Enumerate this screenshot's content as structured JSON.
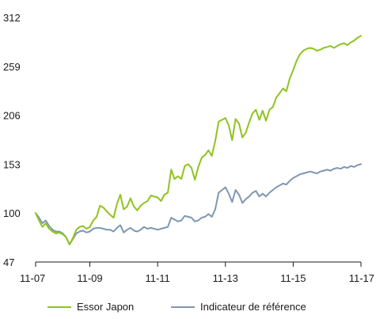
{
  "chart_data": {
    "type": "line",
    "title": "",
    "xlabel": "",
    "ylabel": "",
    "ylim": [
      47,
      312
    ],
    "yticks": [
      47,
      100,
      153,
      206,
      259,
      312
    ],
    "xlim": [
      0,
      48
    ],
    "xticks": [
      {
        "x": 0,
        "label": "11-07"
      },
      {
        "x": 8,
        "label": "11-09"
      },
      {
        "x": 18,
        "label": "11-11"
      },
      {
        "x": 28,
        "label": "11-13"
      },
      {
        "x": 38,
        "label": "11-15"
      },
      {
        "x": 48,
        "label": "11-17"
      }
    ],
    "grid": false,
    "legend_position": "bottom",
    "series": [
      {
        "name": "Essor Japon",
        "color": "#8fc31f",
        "x": [
          0,
          0.5,
          1,
          1.5,
          2,
          2.5,
          3,
          3.5,
          4,
          4.5,
          5,
          5.5,
          6,
          6.5,
          7,
          7.5,
          8,
          8.5,
          9,
          9.5,
          10,
          10.5,
          11,
          11.5,
          12,
          12.5,
          13,
          13.5,
          14,
          14.5,
          15,
          15.5,
          16,
          16.5,
          17,
          17.5,
          18,
          18.5,
          19,
          19.5,
          20,
          20.5,
          21,
          21.5,
          22,
          22.5,
          23,
          23.5,
          24,
          24.5,
          25,
          25.5,
          26,
          26.5,
          27,
          27.5,
          28,
          28.5,
          29,
          29.5,
          30,
          30.5,
          31,
          31.5,
          32,
          32.5,
          33,
          33.5,
          34,
          34.5,
          35,
          35.5,
          36,
          36.5,
          37,
          37.5,
          38,
          38.5,
          39,
          39.5,
          40,
          40.5,
          41,
          41.5,
          42,
          42.5,
          43,
          43.5,
          44,
          44.5,
          45,
          45.5,
          46,
          46.5,
          47,
          47.5,
          48
        ],
        "values": [
          100,
          92,
          85,
          89,
          83,
          80,
          78,
          79,
          77,
          74,
          66,
          73,
          82,
          85,
          86,
          83,
          85,
          92,
          96,
          108,
          106,
          102,
          98,
          95,
          110,
          120,
          104,
          107,
          116,
          107,
          103,
          108,
          111,
          113,
          119,
          118,
          117,
          113,
          120,
          122,
          147,
          137,
          140,
          137,
          151,
          153,
          149,
          136,
          150,
          160,
          163,
          168,
          162,
          178,
          199,
          201,
          203,
          195,
          179,
          202,
          197,
          182,
          187,
          198,
          208,
          212,
          201,
          211,
          200,
          212,
          215,
          225,
          230,
          235,
          232,
          246,
          255,
          265,
          272,
          276,
          278,
          279,
          278,
          276,
          277,
          279,
          280,
          281,
          279,
          281,
          283,
          284,
          282,
          285,
          287,
          290,
          292
        ]
      },
      {
        "name": "Indicateur de référence",
        "color": "#7f97b2",
        "x": [
          0,
          0.5,
          1,
          1.5,
          2,
          2.5,
          3,
          3.5,
          4,
          4.5,
          5,
          5.5,
          6,
          6.5,
          7,
          7.5,
          8,
          8.5,
          9,
          9.5,
          10,
          10.5,
          11,
          11.5,
          12,
          12.5,
          13,
          13.5,
          14,
          14.5,
          15,
          15.5,
          16,
          16.5,
          17,
          17.5,
          18,
          18.5,
          19,
          19.5,
          20,
          20.5,
          21,
          21.5,
          22,
          22.5,
          23,
          23.5,
          24,
          24.5,
          25,
          25.5,
          26,
          26.5,
          27,
          27.5,
          28,
          28.5,
          29,
          29.5,
          30,
          30.5,
          31,
          31.5,
          32,
          32.5,
          33,
          33.5,
          34,
          34.5,
          35,
          35.5,
          36,
          36.5,
          37,
          37.5,
          38,
          38.5,
          39,
          39.5,
          40,
          40.5,
          41,
          41.5,
          42,
          42.5,
          43,
          43.5,
          44,
          44.5,
          45,
          45.5,
          46,
          46.5,
          47,
          47.5,
          48
        ],
        "values": [
          100,
          95,
          89,
          92,
          86,
          82,
          80,
          80,
          78,
          74,
          66,
          72,
          78,
          80,
          81,
          79,
          80,
          83,
          84,
          84,
          83,
          82,
          82,
          80,
          84,
          87,
          79,
          82,
          84,
          81,
          80,
          82,
          85,
          83,
          84,
          83,
          82,
          83,
          84,
          85,
          95,
          93,
          91,
          92,
          97,
          96,
          95,
          91,
          92,
          95,
          96,
          99,
          96,
          104,
          122,
          125,
          128,
          121,
          112,
          125,
          120,
          111,
          115,
          118,
          122,
          124,
          118,
          121,
          118,
          122,
          125,
          128,
          130,
          132,
          131,
          135,
          138,
          140,
          142,
          143,
          144,
          145,
          144,
          143,
          145,
          146,
          147,
          146,
          148,
          149,
          148,
          150,
          149,
          151,
          150,
          152,
          153
        ]
      }
    ]
  }
}
